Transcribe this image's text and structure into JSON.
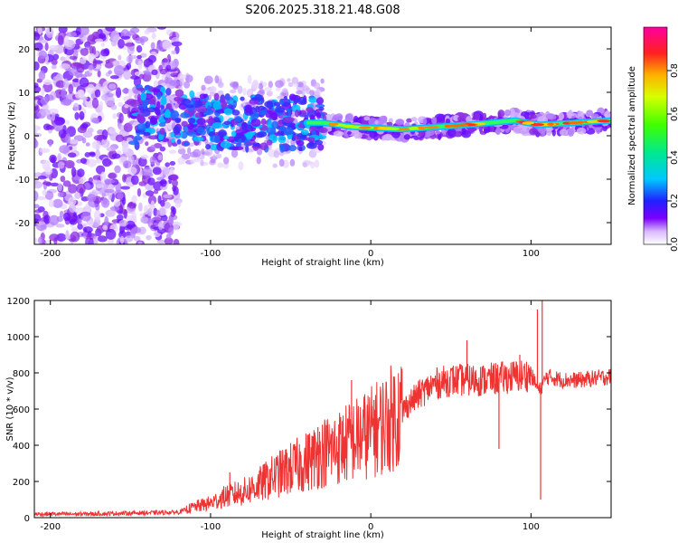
{
  "title": "S206.2025.318.21.48.G08",
  "chart_data": [
    {
      "type": "heatmap",
      "name": "spectrogram",
      "xlabel": "Height of straight line (km)",
      "ylabel": "Frequency (Hz)",
      "xlim": [
        -210,
        150
      ],
      "ylim": [
        -25,
        25
      ],
      "xticks": [
        -200,
        -100,
        0,
        100
      ],
      "yticks": [
        20,
        10,
        0,
        -10,
        -20
      ],
      "colorbar": {
        "label": "Normalized spectral amplitude",
        "range": [
          0,
          1
        ],
        "ticks": [
          0.0,
          0.2,
          0.4,
          0.6,
          0.8
        ]
      },
      "ridge_frequency_hz": [
        {
          "x": -145,
          "f": 6
        },
        {
          "x": -120,
          "f": 4
        },
        {
          "x": -90,
          "f": 3
        },
        {
          "x": -60,
          "f": 3
        },
        {
          "x": -30,
          "f": 3
        },
        {
          "x": -10,
          "f": 2
        },
        {
          "x": 20,
          "f": 1.5
        },
        {
          "x": 60,
          "f": 2.5
        },
        {
          "x": 90,
          "f": 3.5
        },
        {
          "x": 105,
          "f": 2.5
        },
        {
          "x": 150,
          "f": 3.5
        }
      ]
    },
    {
      "type": "line",
      "name": "snr",
      "xlabel": "Height of straight line (km)",
      "ylabel": "SNR (10 * v/v)",
      "xlim": [
        -210,
        150
      ],
      "ylim": [
        0,
        1200
      ],
      "xticks": [
        -200,
        -100,
        0,
        100
      ],
      "yticks": [
        0,
        200,
        400,
        600,
        800,
        1000,
        1200
      ],
      "color": "#ee3333",
      "series": [
        {
          "name": "SNR",
          "x": [
            -210,
            -180,
            -150,
            -120,
            -110,
            -100,
            -90,
            -80,
            -70,
            -60,
            -50,
            -40,
            -30,
            -20,
            -10,
            0,
            10,
            20,
            30,
            40,
            50,
            60,
            70,
            80,
            90,
            100,
            105,
            110,
            120,
            130,
            140,
            150
          ],
          "y": [
            20,
            20,
            25,
            30,
            60,
            80,
            120,
            140,
            180,
            230,
            270,
            310,
            360,
            390,
            430,
            470,
            530,
            600,
            680,
            740,
            760,
            760,
            760,
            770,
            780,
            790,
            700,
            780,
            760,
            760,
            770,
            780
          ]
        }
      ],
      "spikes": [
        {
          "x": -88,
          "y": 250
        },
        {
          "x": -47,
          "y": 360
        },
        {
          "x": -33,
          "y": 500
        },
        {
          "x": -12,
          "y": 760
        },
        {
          "x": 2,
          "y": 650
        },
        {
          "x": 60,
          "y": 980
        },
        {
          "x": 80,
          "y": 380
        },
        {
          "x": 93,
          "y": 900
        },
        {
          "x": 104,
          "y": 1150
        },
        {
          "x": 107,
          "y": 1200
        },
        {
          "x": 106,
          "y": 100
        }
      ]
    }
  ]
}
